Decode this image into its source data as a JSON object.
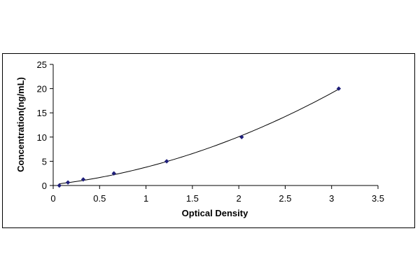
{
  "chart_data": {
    "type": "scatter",
    "title": "",
    "xlabel": "Optical Density",
    "ylabel": "Concentration(ng/mL)",
    "xlim": [
      0,
      3.5
    ],
    "ylim": [
      0,
      25
    ],
    "x_ticks": [
      "0",
      "0.5",
      "1",
      "1.5",
      "2",
      "2.5",
      "3",
      "3.5"
    ],
    "y_ticks": [
      "0",
      "5",
      "10",
      "15",
      "20",
      "25"
    ],
    "grid": false,
    "legend": "none",
    "series": [
      {
        "points": [
          {
            "x": 0.066,
            "y": 0
          },
          {
            "x": 0.159,
            "y": 0.625
          },
          {
            "x": 0.324,
            "y": 1.25
          },
          {
            "x": 0.654,
            "y": 2.5
          },
          {
            "x": 1.223,
            "y": 5
          },
          {
            "x": 2.031,
            "y": 10
          },
          {
            "x": 3.077,
            "y": 20
          }
        ],
        "trendline": "polynomial"
      }
    ],
    "colors": {
      "marker": "#1f1f7a",
      "line": "#000000",
      "axis": "#000000"
    }
  }
}
